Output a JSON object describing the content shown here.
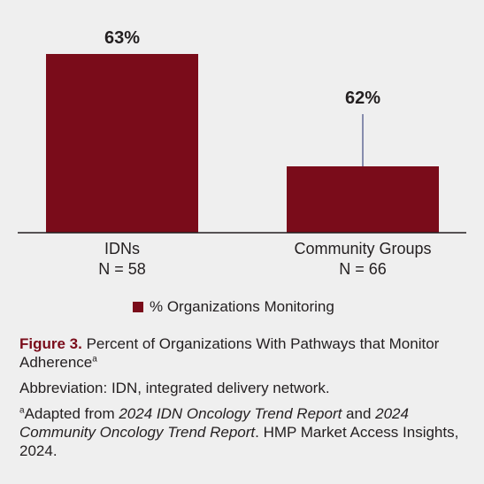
{
  "colors": {
    "bar": "#7a0c1a",
    "leader_line": "#1f2a6b",
    "axis": "#231f20",
    "background": "#efefef",
    "figure_label": "#7a0c1a"
  },
  "chart_data": {
    "type": "bar",
    "categories": [
      "IDNs",
      "Community Groups"
    ],
    "category_sublabels": [
      "N = 58",
      "N = 66"
    ],
    "series": [
      {
        "name": "% Organizations Monitoring",
        "values": [
          63,
          62
        ],
        "data_labels": [
          "63%",
          "62%"
        ]
      }
    ],
    "legend": "bottom-center",
    "grid": false
  },
  "legend": {
    "label": "% Organizations Monitoring"
  },
  "caption": {
    "figure_label": "Figure 3.",
    "figure_title": "Percent of Organizations With Pathways that Monitor Adherence",
    "figure_title_sup": "a",
    "abbreviation": "Abbreviation: IDN, integrated delivery network.",
    "footnote_marker": "a",
    "footnote_text_1": "Adapted from ",
    "footnote_italic_1": "2024 IDN Oncology Trend Report",
    "footnote_text_2": " and ",
    "footnote_italic_2": "2024 Community Oncology Trend Report",
    "footnote_text_3": ". HMP Market Access Insights, 2024."
  }
}
